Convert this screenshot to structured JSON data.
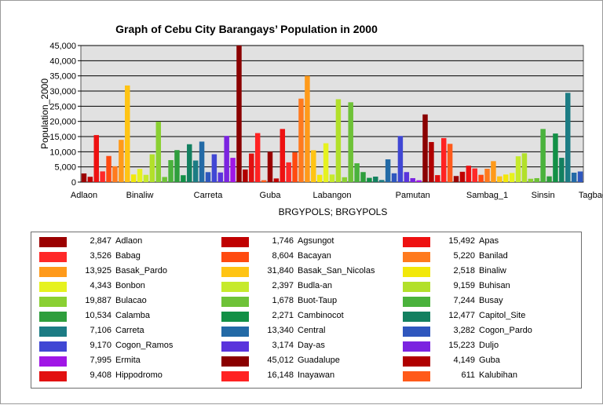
{
  "chart_data": {
    "type": "bar",
    "title": "Graph of Cebu City Barangays’ Population in 2000",
    "xlabel": "BRGYPOLS; BRGYPOLS",
    "ylabel": "Population_2000",
    "ylim": [
      0,
      45000
    ],
    "yticks": [
      "0",
      "5,000",
      "10,000",
      "15,000",
      "20,000",
      "25,000",
      "30,000",
      "35,000",
      "40,000",
      "45,000"
    ],
    "ytick_values": [
      0,
      5000,
      10000,
      15000,
      20000,
      25000,
      30000,
      35000,
      40000,
      45000
    ],
    "xtick_labels": [
      {
        "label": "Adlaon",
        "index": 0
      },
      {
        "label": "Binaliw",
        "index": 9
      },
      {
        "label": "Carreta",
        "index": 20
      },
      {
        "label": "Guba",
        "index": 30
      },
      {
        "label": "Labangon",
        "index": 40
      },
      {
        "label": "Pamutan",
        "index": 53
      },
      {
        "label": "Sambag_1",
        "index": 65
      },
      {
        "label": "Sinsin",
        "index": 74
      },
      {
        "label": "Tagbao",
        "index": 82
      }
    ],
    "grid": true,
    "legend_position": "bottom",
    "values": [
      2847,
      1746,
      15492,
      3526,
      8604,
      5220,
      13925,
      31840,
      2518,
      4343,
      2397,
      9159,
      19887,
      1678,
      7244,
      10534,
      2271,
      12477,
      7106,
      13340,
      3282,
      9170,
      3174,
      15223,
      7995,
      45012,
      4149,
      9408,
      16148,
      611,
      10000,
      1200,
      17500,
      6500,
      9800,
      27500,
      35000,
      10500,
      2400,
      12800,
      2500,
      27300,
      1600,
      26300,
      6200,
      3300,
      1400,
      1800,
      700,
      7500,
      2900,
      15200,
      3300,
      1300,
      600,
      22300,
      13200,
      2300,
      14500,
      12600,
      2000,
      3400,
      5400,
      4500,
      2400,
      4400,
      6900,
      1900,
      2500,
      3000,
      8500,
      9500,
      1100,
      1300,
      17500,
      1900,
      16000,
      8000,
      29400,
      3100,
      3500
    ],
    "colors": [
      "#9b0000",
      "#c00000",
      "#ee1111",
      "#ff2828",
      "#ff4a10",
      "#ff7a1e",
      "#ff9a1a",
      "#ffc414",
      "#f2e80a",
      "#e6f21e",
      "#c6ea2c",
      "#b2e02a",
      "#8ad032",
      "#6ec238",
      "#4ab23c",
      "#2e9e3c",
      "#129046",
      "#138060",
      "#1c7c84",
      "#236aa6",
      "#2f57be",
      "#4047d4",
      "#5a34dc",
      "#7b24e0",
      "#a016e6",
      "#8a0000",
      "#b00000",
      "#e21010",
      "#ff2222",
      "#ff5a1a"
    ],
    "series": [
      {
        "name": "Population_2000",
        "values_ref": "values"
      }
    ]
  },
  "legend": [
    [
      {
        "value": "2,847",
        "label": "Adlaon",
        "color": "#9b0000"
      },
      {
        "value": "3,526",
        "label": "Babag",
        "color": "#ff2828"
      },
      {
        "value": "13,925",
        "label": "Basak_Pardo",
        "color": "#ff9a1a"
      },
      {
        "value": "4,343",
        "label": "Bonbon",
        "color": "#e6f21e"
      },
      {
        "value": "19,887",
        "label": "Bulacao",
        "color": "#8ad032"
      },
      {
        "value": "10,534",
        "label": "Calamba",
        "color": "#2e9e3c"
      },
      {
        "value": "7,106",
        "label": "Carreta",
        "color": "#1c7c84"
      },
      {
        "value": "9,170",
        "label": "Cogon_Ramos",
        "color": "#4047d4"
      },
      {
        "value": "7,995",
        "label": "Ermita",
        "color": "#a016e6"
      },
      {
        "value": "9,408",
        "label": "Hippodromo",
        "color": "#e21010"
      }
    ],
    [
      {
        "value": "1,746",
        "label": "Agsungot",
        "color": "#c00000"
      },
      {
        "value": "8,604",
        "label": "Bacayan",
        "color": "#ff4a10"
      },
      {
        "value": "31,840",
        "label": "Basak_San_Nicolas",
        "color": "#ffc414"
      },
      {
        "value": "2,397",
        "label": "Budla-an",
        "color": "#c6ea2c"
      },
      {
        "value": "1,678",
        "label": "Buot-Taup",
        "color": "#6ec238"
      },
      {
        "value": "2,271",
        "label": "Cambinocot",
        "color": "#129046"
      },
      {
        "value": "13,340",
        "label": "Central",
        "color": "#236aa6"
      },
      {
        "value": "3,174",
        "label": "Day-as",
        "color": "#5a34dc"
      },
      {
        "value": "45,012",
        "label": "Guadalupe",
        "color": "#8a0000"
      },
      {
        "value": "16,148",
        "label": "Inayawan",
        "color": "#ff2222"
      }
    ],
    [
      {
        "value": "15,492",
        "label": "Apas",
        "color": "#ee1111"
      },
      {
        "value": "5,220",
        "label": "Banilad",
        "color": "#ff7a1e"
      },
      {
        "value": "2,518",
        "label": "Binaliw",
        "color": "#f2e80a"
      },
      {
        "value": "9,159",
        "label": "Buhisan",
        "color": "#b2e02a"
      },
      {
        "value": "7,244",
        "label": "Busay",
        "color": "#4ab23c"
      },
      {
        "value": "12,477",
        "label": "Capitol_Site",
        "color": "#138060"
      },
      {
        "value": "3,282",
        "label": "Cogon_Pardo",
        "color": "#2f57be"
      },
      {
        "value": "15,223",
        "label": "Duljo",
        "color": "#7b24e0"
      },
      {
        "value": "4,149",
        "label": "Guba",
        "color": "#b00000"
      },
      {
        "value": "611",
        "label": "Kalubihan",
        "color": "#ff5a1a"
      }
    ]
  ]
}
